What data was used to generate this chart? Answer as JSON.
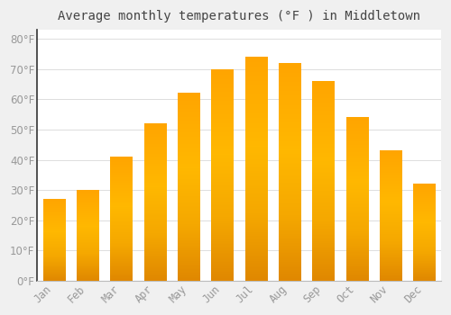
{
  "title": "Average monthly temperatures (°F ) in Middletown",
  "months": [
    "Jan",
    "Feb",
    "Mar",
    "Apr",
    "May",
    "Jun",
    "Jul",
    "Aug",
    "Sep",
    "Oct",
    "Nov",
    "Dec"
  ],
  "values": [
    27,
    30,
    41,
    52,
    62,
    70,
    74,
    72,
    66,
    54,
    43,
    32
  ],
  "bar_color_top": "#F5A800",
  "bar_color_mid": "#FFCA40",
  "bar_color_bot": "#E89000",
  "background_color": "#F0F0F0",
  "plot_bg_color": "#FFFFFF",
  "grid_color": "#DDDDDD",
  "title_color": "#444444",
  "tick_label_color": "#999999",
  "ylim": [
    0,
    83
  ],
  "yticks": [
    0,
    10,
    20,
    30,
    40,
    50,
    60,
    70,
    80
  ],
  "title_fontsize": 10,
  "tick_fontsize": 8.5
}
